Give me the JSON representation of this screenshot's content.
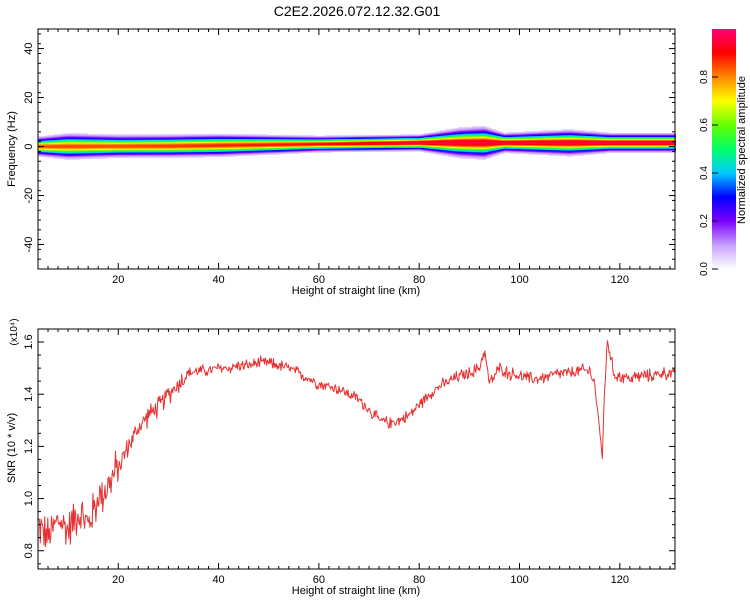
{
  "title": "C2E2.2026.072.12.32.G01",
  "chart_data": [
    {
      "type": "heatmap",
      "xlabel": "Height of straight line (km)",
      "ylabel": "Frequency (Hz)",
      "xlim": [
        4,
        131
      ],
      "ylim": [
        -50,
        48
      ],
      "xticks": [
        20,
        40,
        60,
        80,
        100,
        120
      ],
      "yticks": [
        -40,
        -20,
        0,
        20,
        40
      ],
      "colorbar": {
        "label": "Normalized spectral amplitude",
        "range": [
          0,
          1
        ],
        "ticks": [
          0.0,
          0.2,
          0.4,
          0.6,
          0.8
        ],
        "tick_labels": [
          "0.0",
          "0.2",
          "0.4",
          "0.6",
          "0.8"
        ],
        "colors": [
          "#ffffff",
          "#c8a0ff",
          "#7a00ff",
          "#0000ff",
          "#00ccff",
          "#00ff66",
          "#66ff00",
          "#ffff00",
          "#ff8800",
          "#ff0000",
          "#ff0077"
        ]
      },
      "ridge": {
        "center_hz": [
          [
            4,
            0
          ],
          [
            30,
            0.2
          ],
          [
            60,
            1
          ],
          [
            80,
            1.5
          ],
          [
            95,
            1.5
          ],
          [
            120,
            1.5
          ],
          [
            131,
            1.5
          ]
        ],
        "half_width_hz": [
          [
            4,
            3
          ],
          [
            10,
            4
          ],
          [
            20,
            3.5
          ],
          [
            40,
            3.5
          ],
          [
            60,
            2.5
          ],
          [
            80,
            2.5
          ],
          [
            88,
            4.5
          ],
          [
            93,
            5
          ],
          [
            97,
            3
          ],
          [
            110,
            4
          ],
          [
            118,
            3
          ],
          [
            131,
            3
          ]
        ],
        "peak_value": [
          [
            4,
            0.85
          ],
          [
            20,
            0.85
          ],
          [
            60,
            0.9
          ],
          [
            80,
            0.97
          ],
          [
            95,
            0.95
          ],
          [
            120,
            0.97
          ],
          [
            131,
            0.97
          ]
        ]
      }
    },
    {
      "type": "line",
      "xlabel": "Height of straight line (km)",
      "ylabel": "SNR (10 * v/v)",
      "scale_label": "(x10⁴)",
      "xlim": [
        4,
        131
      ],
      "ylim": [
        0.73,
        1.65
      ],
      "xticks": [
        20,
        40,
        60,
        80,
        100,
        120
      ],
      "yticks": [
        0.8,
        1.0,
        1.2,
        1.4,
        1.6
      ],
      "ytick_labels": [
        "0.8",
        "1.0",
        "1.2",
        "1.4",
        "1.6"
      ],
      "color": "#e83030",
      "series": [
        {
          "x": [
            4,
            6,
            8,
            10,
            12,
            14,
            16,
            18,
            20,
            22,
            24,
            26,
            28,
            30,
            32,
            34,
            36,
            38,
            40,
            42,
            44,
            46,
            48,
            50,
            52,
            54,
            56,
            58,
            60,
            62,
            64,
            66,
            68,
            70,
            72,
            74,
            76,
            78,
            80,
            82,
            84,
            86,
            88,
            90,
            92,
            93,
            94,
            96,
            98,
            100,
            102,
            104,
            106,
            108,
            110,
            112,
            114,
            115,
            116,
            116.5,
            117,
            117.5,
            118,
            119,
            120,
            122,
            124,
            126,
            128,
            130,
            131
          ],
          "y": [
            0.9,
            0.85,
            0.92,
            0.88,
            0.95,
            0.9,
            1.0,
            1.05,
            1.12,
            1.2,
            1.27,
            1.32,
            1.35,
            1.4,
            1.44,
            1.48,
            1.49,
            1.49,
            1.5,
            1.5,
            1.51,
            1.51,
            1.52,
            1.52,
            1.51,
            1.5,
            1.48,
            1.46,
            1.44,
            1.43,
            1.42,
            1.4,
            1.38,
            1.34,
            1.3,
            1.29,
            1.3,
            1.32,
            1.36,
            1.4,
            1.43,
            1.45,
            1.47,
            1.48,
            1.5,
            1.57,
            1.44,
            1.5,
            1.48,
            1.47,
            1.46,
            1.46,
            1.47,
            1.48,
            1.48,
            1.49,
            1.49,
            1.44,
            1.25,
            1.17,
            1.42,
            1.62,
            1.55,
            1.47,
            1.47,
            1.46,
            1.47,
            1.47,
            1.48,
            1.48,
            1.47
          ]
        }
      ]
    }
  ]
}
